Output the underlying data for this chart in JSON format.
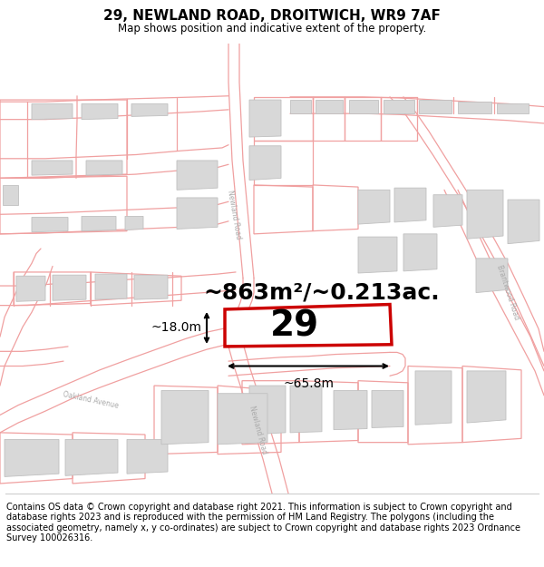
{
  "title": "29, NEWLAND ROAD, DROITWICH, WR9 7AF",
  "subtitle": "Map shows position and indicative extent of the property.",
  "footer_lines": [
    "Contains OS data © Crown copyright and database right 2021. This information is subject to Crown copyright and database rights 2023 and is reproduced with the permission of",
    "HM Land Registry. The polygons (including the associated geometry, namely x, y co-ordinates) are subject to Crown copyright and database rights 2023 Ordnance Survey",
    "100026316."
  ],
  "area_text": "~863m²/~0.213ac.",
  "number_text": "29",
  "width_text": "~65.8m",
  "height_text": "~18.0m",
  "map_bg": "#ffffff",
  "road_color": "#f0a0a0",
  "block_color": "#d8d8d8",
  "block_edge": "#c0c0c0",
  "prop_fill": "#ffffff",
  "prop_edge": "#cc0000",
  "label_color": "#aaaaaa",
  "title_fontsize": 11,
  "subtitle_fontsize": 8.5,
  "footer_fontsize": 7.0,
  "area_fontsize": 18,
  "number_fontsize": 28,
  "dim_fontsize": 10,
  "road_lw": 0.9
}
